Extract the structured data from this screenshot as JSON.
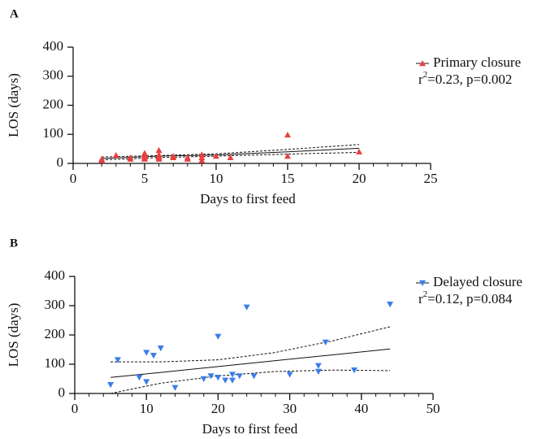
{
  "chart_data": [
    {
      "type": "scatter",
      "panel": "A",
      "xlabel": "Days to first feed",
      "ylabel": "LOS (days)",
      "xlim": [
        0,
        25
      ],
      "xticks": [
        0,
        5,
        10,
        15,
        20,
        25
      ],
      "minor_tick_step": 1,
      "ylim": [
        0,
        400
      ],
      "yticks": [
        0,
        100,
        200,
        300,
        400
      ],
      "series": [
        {
          "name": "Primary closure",
          "color": "#e8403f",
          "marker": "triangle-up",
          "x": [
            2,
            2,
            3,
            4,
            4,
            5,
            5,
            5,
            5,
            5,
            6,
            6,
            6,
            6,
            6,
            7,
            7,
            8,
            8,
            9,
            9,
            9,
            10,
            11,
            15,
            15,
            20
          ],
          "values": [
            10,
            15,
            28,
            20,
            15,
            30,
            25,
            20,
            15,
            35,
            45,
            30,
            20,
            15,
            25,
            25,
            20,
            20,
            15,
            30,
            20,
            10,
            25,
            20,
            98,
            25,
            40
          ]
        }
      ],
      "fit": {
        "x": [
          2,
          6,
          10,
          15,
          20
        ],
        "values": [
          17,
          25,
          29,
          40,
          52
        ],
        "upper": [
          22,
          27,
          33,
          48,
          65
        ],
        "lower": [
          12,
          20,
          25,
          32,
          38
        ]
      },
      "stat": {
        "base": "r",
        "sup": "2",
        "rest": "=0.23, p=0.002"
      }
    },
    {
      "type": "scatter",
      "panel": "B",
      "xlabel": "Days to first feed",
      "ylabel": "LOS (days)",
      "xlim": [
        0,
        50
      ],
      "xticks": [
        0,
        10,
        20,
        30,
        40,
        50
      ],
      "minor_tick_step": 2,
      "ylim": [
        0,
        400
      ],
      "yticks": [
        0,
        100,
        200,
        300,
        400
      ],
      "series": [
        {
          "name": "Delayed closure",
          "color": "#3b7de8",
          "marker": "triangle-down",
          "x": [
            5,
            6,
            9,
            10,
            10,
            11,
            12,
            14,
            18,
            19,
            20,
            20,
            21,
            22,
            22,
            23,
            24,
            25,
            30,
            34,
            34,
            35,
            39,
            44
          ],
          "values": [
            30,
            115,
            55,
            140,
            40,
            130,
            155,
            20,
            50,
            60,
            195,
            55,
            45,
            65,
            45,
            60,
            295,
            60,
            65,
            95,
            75,
            175,
            80,
            305
          ]
        }
      ],
      "fit": {
        "x": [
          5,
          12,
          20,
          28,
          36,
          44
        ],
        "values": [
          55,
          72,
          92,
          112,
          132,
          152
        ],
        "upper": [
          108,
          108,
          115,
          140,
          180,
          228
        ],
        "lower": [
          0,
          35,
          60,
          75,
          80,
          78
        ]
      },
      "stat": {
        "base": "r",
        "sup": "2",
        "rest": "=0.12, p=0.084"
      }
    }
  ]
}
